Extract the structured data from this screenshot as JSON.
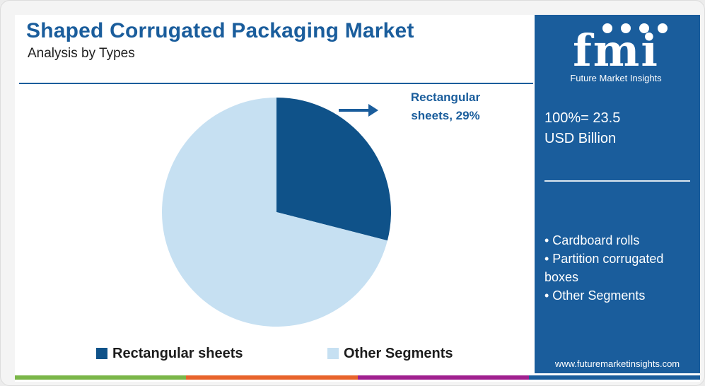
{
  "title": "Shaped Corrugated Packaging Market",
  "subtitle": "Analysis by Types",
  "callout": {
    "line1": "Rectangular",
    "line2": "sheets, 29%"
  },
  "legend": [
    {
      "label": "Rectangular sheets",
      "color": "#0f5289"
    },
    {
      "label": "Other Segments",
      "color": "#c6e0f2"
    }
  ],
  "chart_data": {
    "type": "pie",
    "title": "Shaped Corrugated Packaging Market",
    "subtitle": "Analysis by Types",
    "categories": [
      "Rectangular sheets",
      "Other Segments"
    ],
    "values": [
      29,
      71
    ],
    "unit": "%",
    "colors": [
      "#0f5289",
      "#c6e0f2"
    ],
    "data_labels": [
      "Rectangular sheets, 29%"
    ],
    "legend_position": "bottom"
  },
  "sidebar": {
    "logo_text": "fmi",
    "logo_subtext": "Future Market Insights",
    "total_line1": "100%= 23.5",
    "total_line2": "USD Billion",
    "other_segments": [
      "• Cardboard rolls",
      "• Partition corrugated boxes",
      "• Other Segments"
    ],
    "website": "www.futuremarketinsights.com"
  },
  "colors": {
    "brand_blue": "#1a5d9c",
    "pie_dark": "#0f5289",
    "pie_light": "#c6e0f2",
    "bottom_bar": [
      "#7ab648",
      "#e8632b",
      "#a0208f",
      "#1a5d9c"
    ]
  }
}
